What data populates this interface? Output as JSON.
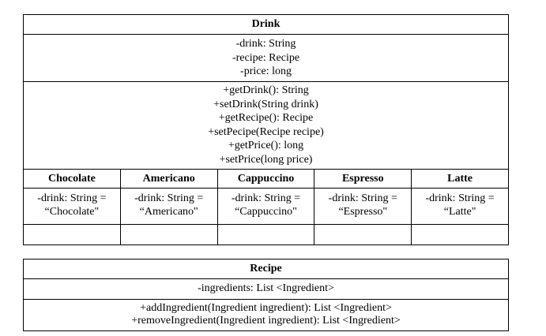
{
  "drink": {
    "name": "Drink",
    "attributes": [
      "-drink: String",
      "-recipe: Recipe",
      "-price: long"
    ],
    "methods": [
      "+getDrink(): String",
      "+setDrink(String drink)",
      "+getRecipe(): Recipe",
      "+setPecipe(Recipe recipe)",
      "+getPrice(): long",
      "+setPrice(long price)"
    ]
  },
  "subclasses": [
    {
      "name": "Chocolate",
      "attr_line1": "-drink: String =",
      "attr_line2": "“Chocolate\""
    },
    {
      "name": "Americano",
      "attr_line1": "-drink: String =",
      "attr_line2": "“Americano\""
    },
    {
      "name": "Cappuccino",
      "attr_line1": "-drink: String =",
      "attr_line2": "“Cappuccino\""
    },
    {
      "name": "Espresso",
      "attr_line1": "-drink: String =",
      "attr_line2": "“Espresso\""
    },
    {
      "name": "Latte",
      "attr_line1": "-drink: String =",
      "attr_line2": "“Latte\""
    }
  ],
  "recipe": {
    "name": "Recipe",
    "attributes": [
      "-ingredients: List <Ingredient>"
    ],
    "methods": [
      "+addIngredient(Ingredient ingredient): List <Ingredient>",
      "+removeIngredient(Ingredient ingredient): List <Ingredient>"
    ]
  }
}
